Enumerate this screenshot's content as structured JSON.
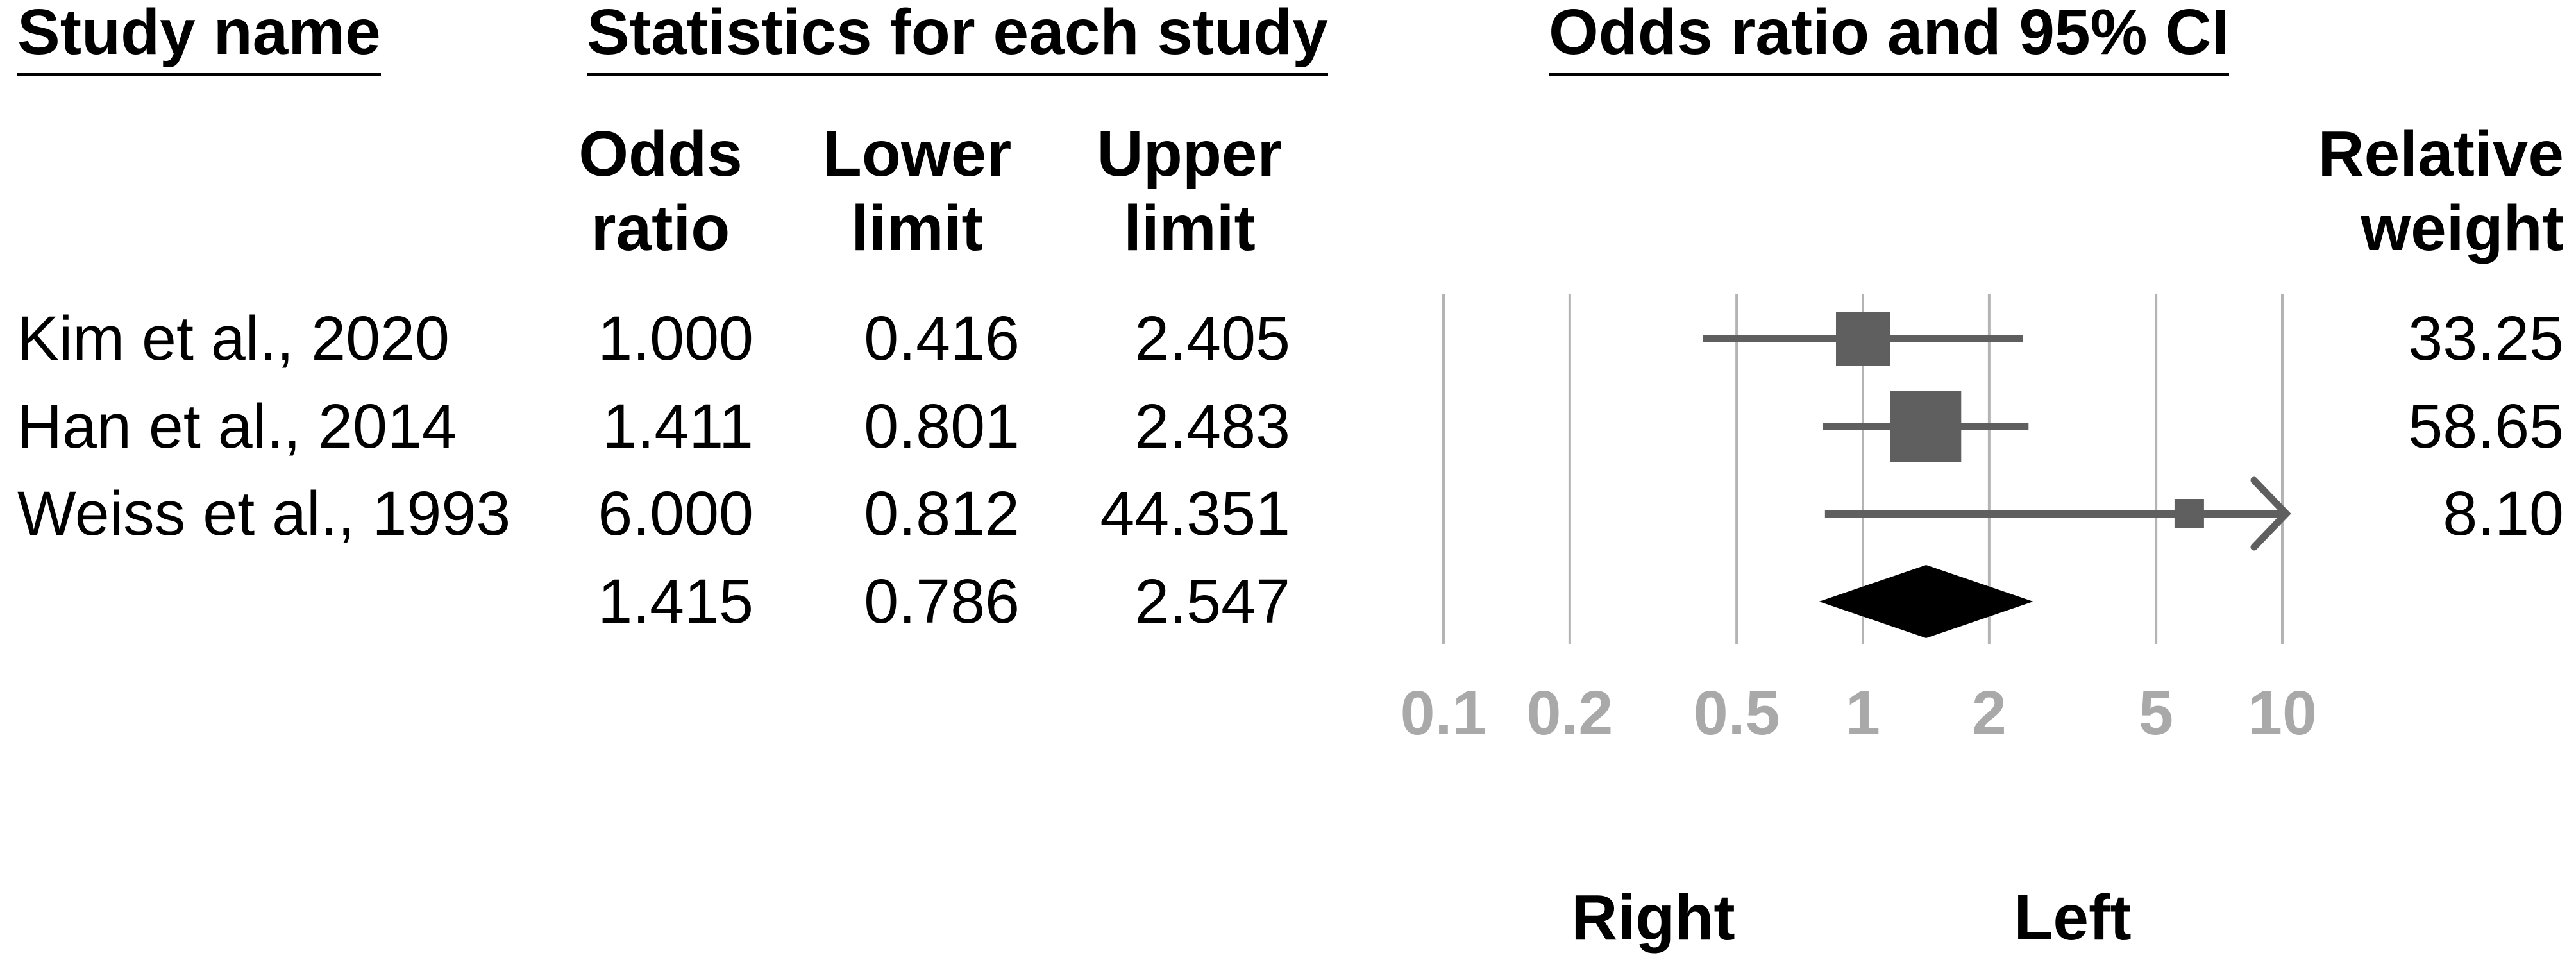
{
  "table": {
    "study_header": "Study name",
    "stats_header": "Statistics for each study",
    "plot_header": "Odds ratio and 95% CI",
    "columns": {
      "odds": {
        "line1": "Odds",
        "line2": "ratio"
      },
      "lower": {
        "line1": "Lower",
        "line2": "limit"
      },
      "upper": {
        "line1": "Upper",
        "line2": "limit"
      },
      "weight": {
        "line1": "Relative",
        "line2": "weight"
      }
    },
    "rows": [
      {
        "study": "Kim et al., 2020",
        "odds_ratio": "1.000",
        "lower": "0.416",
        "upper": "2.405",
        "weight": "33.25"
      },
      {
        "study": "Han et al., 2014",
        "odds_ratio": "1.411",
        "lower": "0.801",
        "upper": "2.483",
        "weight": "58.65"
      },
      {
        "study": "Weiss et al., 1993",
        "odds_ratio": "6.000",
        "lower": "0.812",
        "upper": "44.351",
        "weight": "8.10"
      }
    ],
    "summary_row": {
      "odds_ratio": "1.415",
      "lower": "0.786",
      "upper": "2.547"
    }
  },
  "chart_data": {
    "type": "forest",
    "x_scale": "log10",
    "xlim": [
      0.1,
      10
    ],
    "axis_ticks": [
      0.1,
      0.2,
      0.5,
      1,
      2,
      5,
      10
    ],
    "axis_tick_labels": [
      "0.1",
      "0.2",
      "0.5",
      "1",
      "2",
      "5",
      "10"
    ],
    "grid": "vertical-lines-at-ticks",
    "studies": [
      {
        "name": "Kim et al., 2020",
        "or": 1.0,
        "lower": 0.416,
        "upper": 2.405,
        "weight": 33.25,
        "upper_clipped": false
      },
      {
        "name": "Han et al., 2014",
        "or": 1.411,
        "lower": 0.801,
        "upper": 2.483,
        "weight": 58.65,
        "upper_clipped": false
      },
      {
        "name": "Weiss et al., 1993",
        "or": 6.0,
        "lower": 0.812,
        "upper": 44.351,
        "weight": 8.1,
        "upper_clipped": true
      }
    ],
    "summary": {
      "or": 1.415,
      "lower": 0.786,
      "upper": 2.547
    },
    "side_labels": {
      "below_left_half": "Right",
      "below_right_half": "Left"
    },
    "marker_px": [
      84,
      111,
      46
    ],
    "colors": {
      "marker": "#5f5f5f",
      "ci_line": "#5f5f5f",
      "diamond": "#000000",
      "gridline": "#b4b4b4",
      "tick_label": "#a9a9a9",
      "text": "#000000"
    }
  }
}
